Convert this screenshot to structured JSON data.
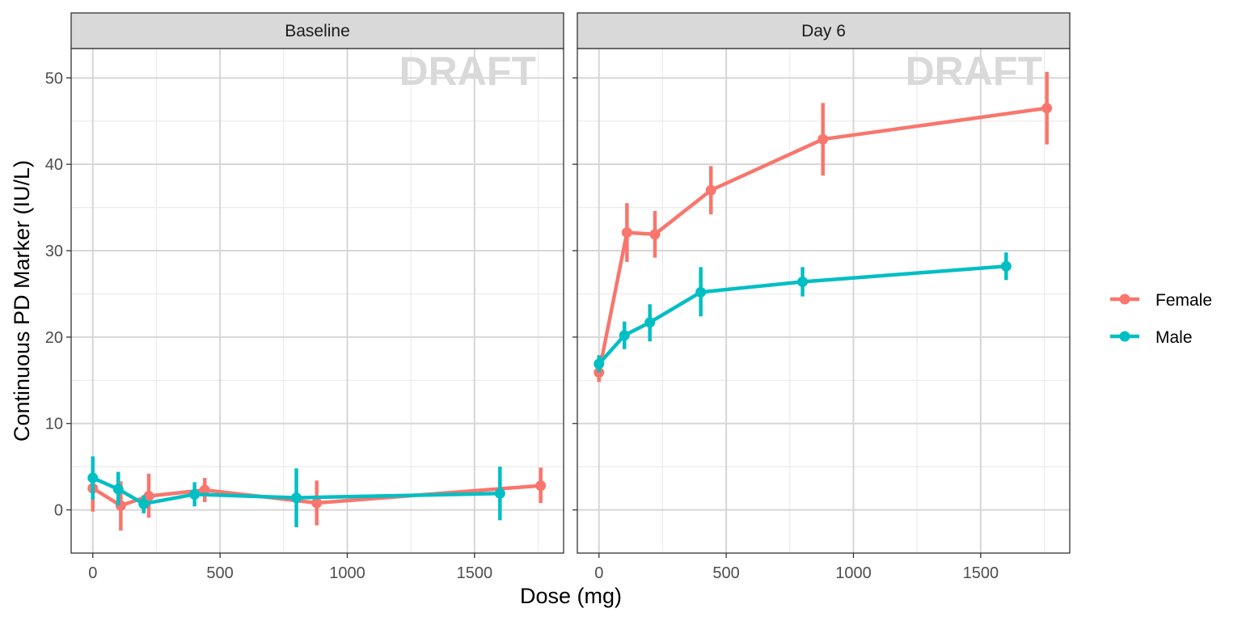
{
  "chart_data": {
    "type": "line",
    "xlabel": "Dose (mg)",
    "ylabel": "Continuous PD Marker (IU/L)",
    "xlim": [
      -85,
      1850
    ],
    "ylim": [
      -5,
      53.4
    ],
    "x_ticks": [
      0,
      500,
      1000,
      1500
    ],
    "x_tick_labels": [
      "0",
      "500",
      "1000",
      "1500"
    ],
    "y_ticks": [
      0,
      10,
      20,
      30,
      40,
      50
    ],
    "y_tick_labels": [
      "0",
      "10",
      "20",
      "30",
      "40",
      "50"
    ],
    "grid": true,
    "watermark": "DRAFT",
    "legend": {
      "position": "right",
      "entries": [
        {
          "name": "Female",
          "color": "#F8766D"
        },
        {
          "name": "Male",
          "color": "#00BFC4"
        }
      ]
    },
    "panels": [
      {
        "title": "Baseline",
        "series": [
          {
            "name": "Female",
            "color": "#F8766D",
            "x": [
              0,
              110,
              220,
              440,
              880,
              1760
            ],
            "y": [
              2.5,
              0.5,
              1.6,
              2.3,
              0.8,
              2.8
            ],
            "ymin": [
              -0.2,
              -2.4,
              -0.9,
              0.9,
              -1.8,
              0.8
            ],
            "ymax": [
              5.2,
              3.3,
              4.2,
              3.7,
              3.4,
              4.9
            ]
          },
          {
            "name": "Male",
            "color": "#00BFC4",
            "x": [
              0,
              100,
              200,
              400,
              800,
              1600
            ],
            "y": [
              3.7,
              2.4,
              0.7,
              1.8,
              1.4,
              1.9
            ],
            "ymin": [
              1.2,
              0.5,
              -0.4,
              0.4,
              -2.0,
              -1.2
            ],
            "ymax": [
              6.2,
              4.4,
              1.7,
              3.2,
              4.8,
              5.0
            ]
          }
        ]
      },
      {
        "title": "Day 6",
        "series": [
          {
            "name": "Female",
            "color": "#F8766D",
            "x": [
              0,
              110,
              220,
              440,
              880,
              1760
            ],
            "y": [
              15.9,
              32.1,
              31.9,
              37.0,
              42.9,
              46.5
            ],
            "ymin": [
              14.8,
              28.7,
              29.2,
              34.2,
              38.7,
              42.3
            ],
            "ymax": [
              17.0,
              35.5,
              34.6,
              39.8,
              47.1,
              50.7
            ]
          },
          {
            "name": "Male",
            "color": "#00BFC4",
            "x": [
              0,
              100,
              200,
              400,
              800,
              1600
            ],
            "y": [
              16.9,
              20.2,
              21.7,
              25.2,
              26.4,
              28.2
            ],
            "ymin": [
              15.9,
              18.6,
              19.5,
              22.4,
              24.7,
              26.6
            ],
            "ymax": [
              17.9,
              21.8,
              23.8,
              28.1,
              28.1,
              29.8
            ]
          }
        ]
      }
    ]
  }
}
